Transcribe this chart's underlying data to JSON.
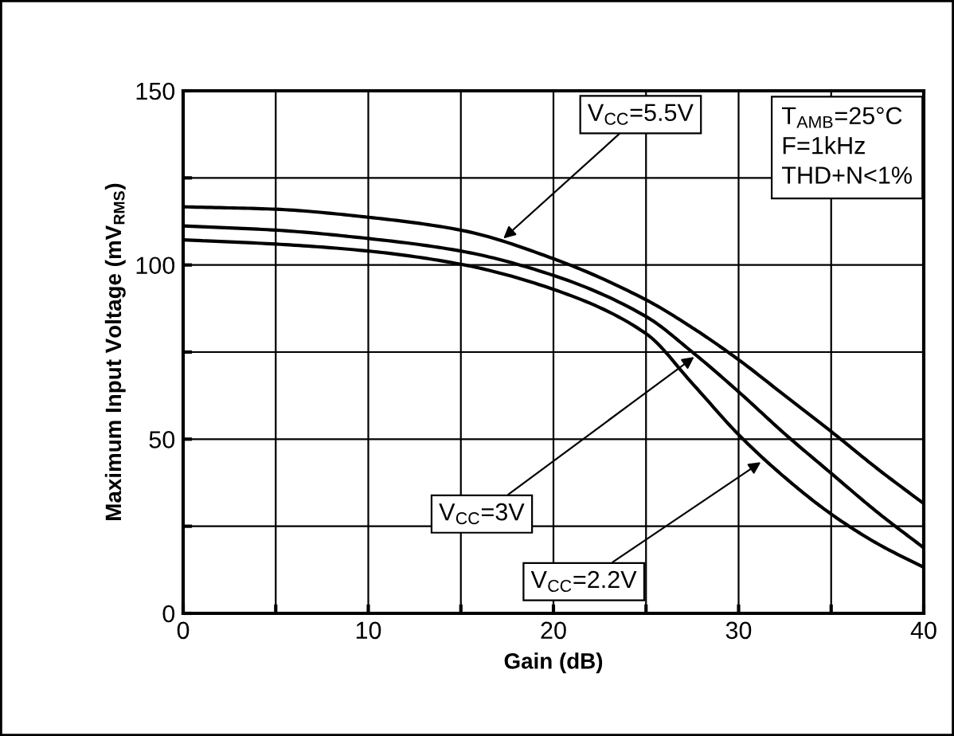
{
  "chart_data": {
    "type": "line",
    "xlabel": "Gain (dB)",
    "ylabel": "Maximum Input Voltage (mV$_{RMS}$)",
    "x": [
      0,
      5,
      10,
      15,
      20,
      25,
      27.5,
      30,
      32.5,
      35,
      37.5,
      40
    ],
    "series": [
      {
        "color": "#000000",
        "values": [
          116.7,
          116,
          113.7,
          110,
          101.8,
          90,
          82,
          72.8,
          62.5,
          52.2,
          41.5,
          31.5
        ]
      },
      {
        "color": "#000000",
        "values": [
          111.2,
          110,
          107.6,
          104,
          97,
          85.2,
          75,
          63.6,
          51.5,
          40.2,
          29,
          18.8
        ]
      },
      {
        "color": "#000000",
        "values": [
          107.2,
          106,
          104,
          100.2,
          93,
          80.3,
          66,
          51.3,
          39,
          28.5,
          20,
          13.2
        ]
      }
    ],
    "xlim": [
      0,
      40
    ],
    "ylim": [
      0,
      150
    ],
    "xticks": [
      0,
      {
        "value": 5,
        "label": null
      },
      10,
      {
        "value": 15,
        "label": null
      },
      20,
      {
        "value": 25,
        "label": null
      },
      30,
      {
        "value": 35,
        "label": null
      },
      40
    ],
    "yticks": [
      0,
      {
        "value": 25,
        "label": null
      },
      50,
      {
        "value": 75,
        "label": null
      },
      100,
      {
        "value": 125,
        "label": null
      },
      150
    ],
    "grid": true,
    "marker": "none",
    "line_style": "solid",
    "annotations": [
      {
        "text": "V$_{CC}$=5.5V",
        "x": 17.3,
        "y": 107.6
      },
      {
        "text": "V$_{CC}$=3V",
        "x": 27.6,
        "y": 73.6
      },
      {
        "text": "V$_{CC}$=2.2V",
        "x": 31.2,
        "y": 43.4
      },
      "T$_{AMB}$=25°C\nF=1kHz\nTHD+N<1%"
    ]
  }
}
